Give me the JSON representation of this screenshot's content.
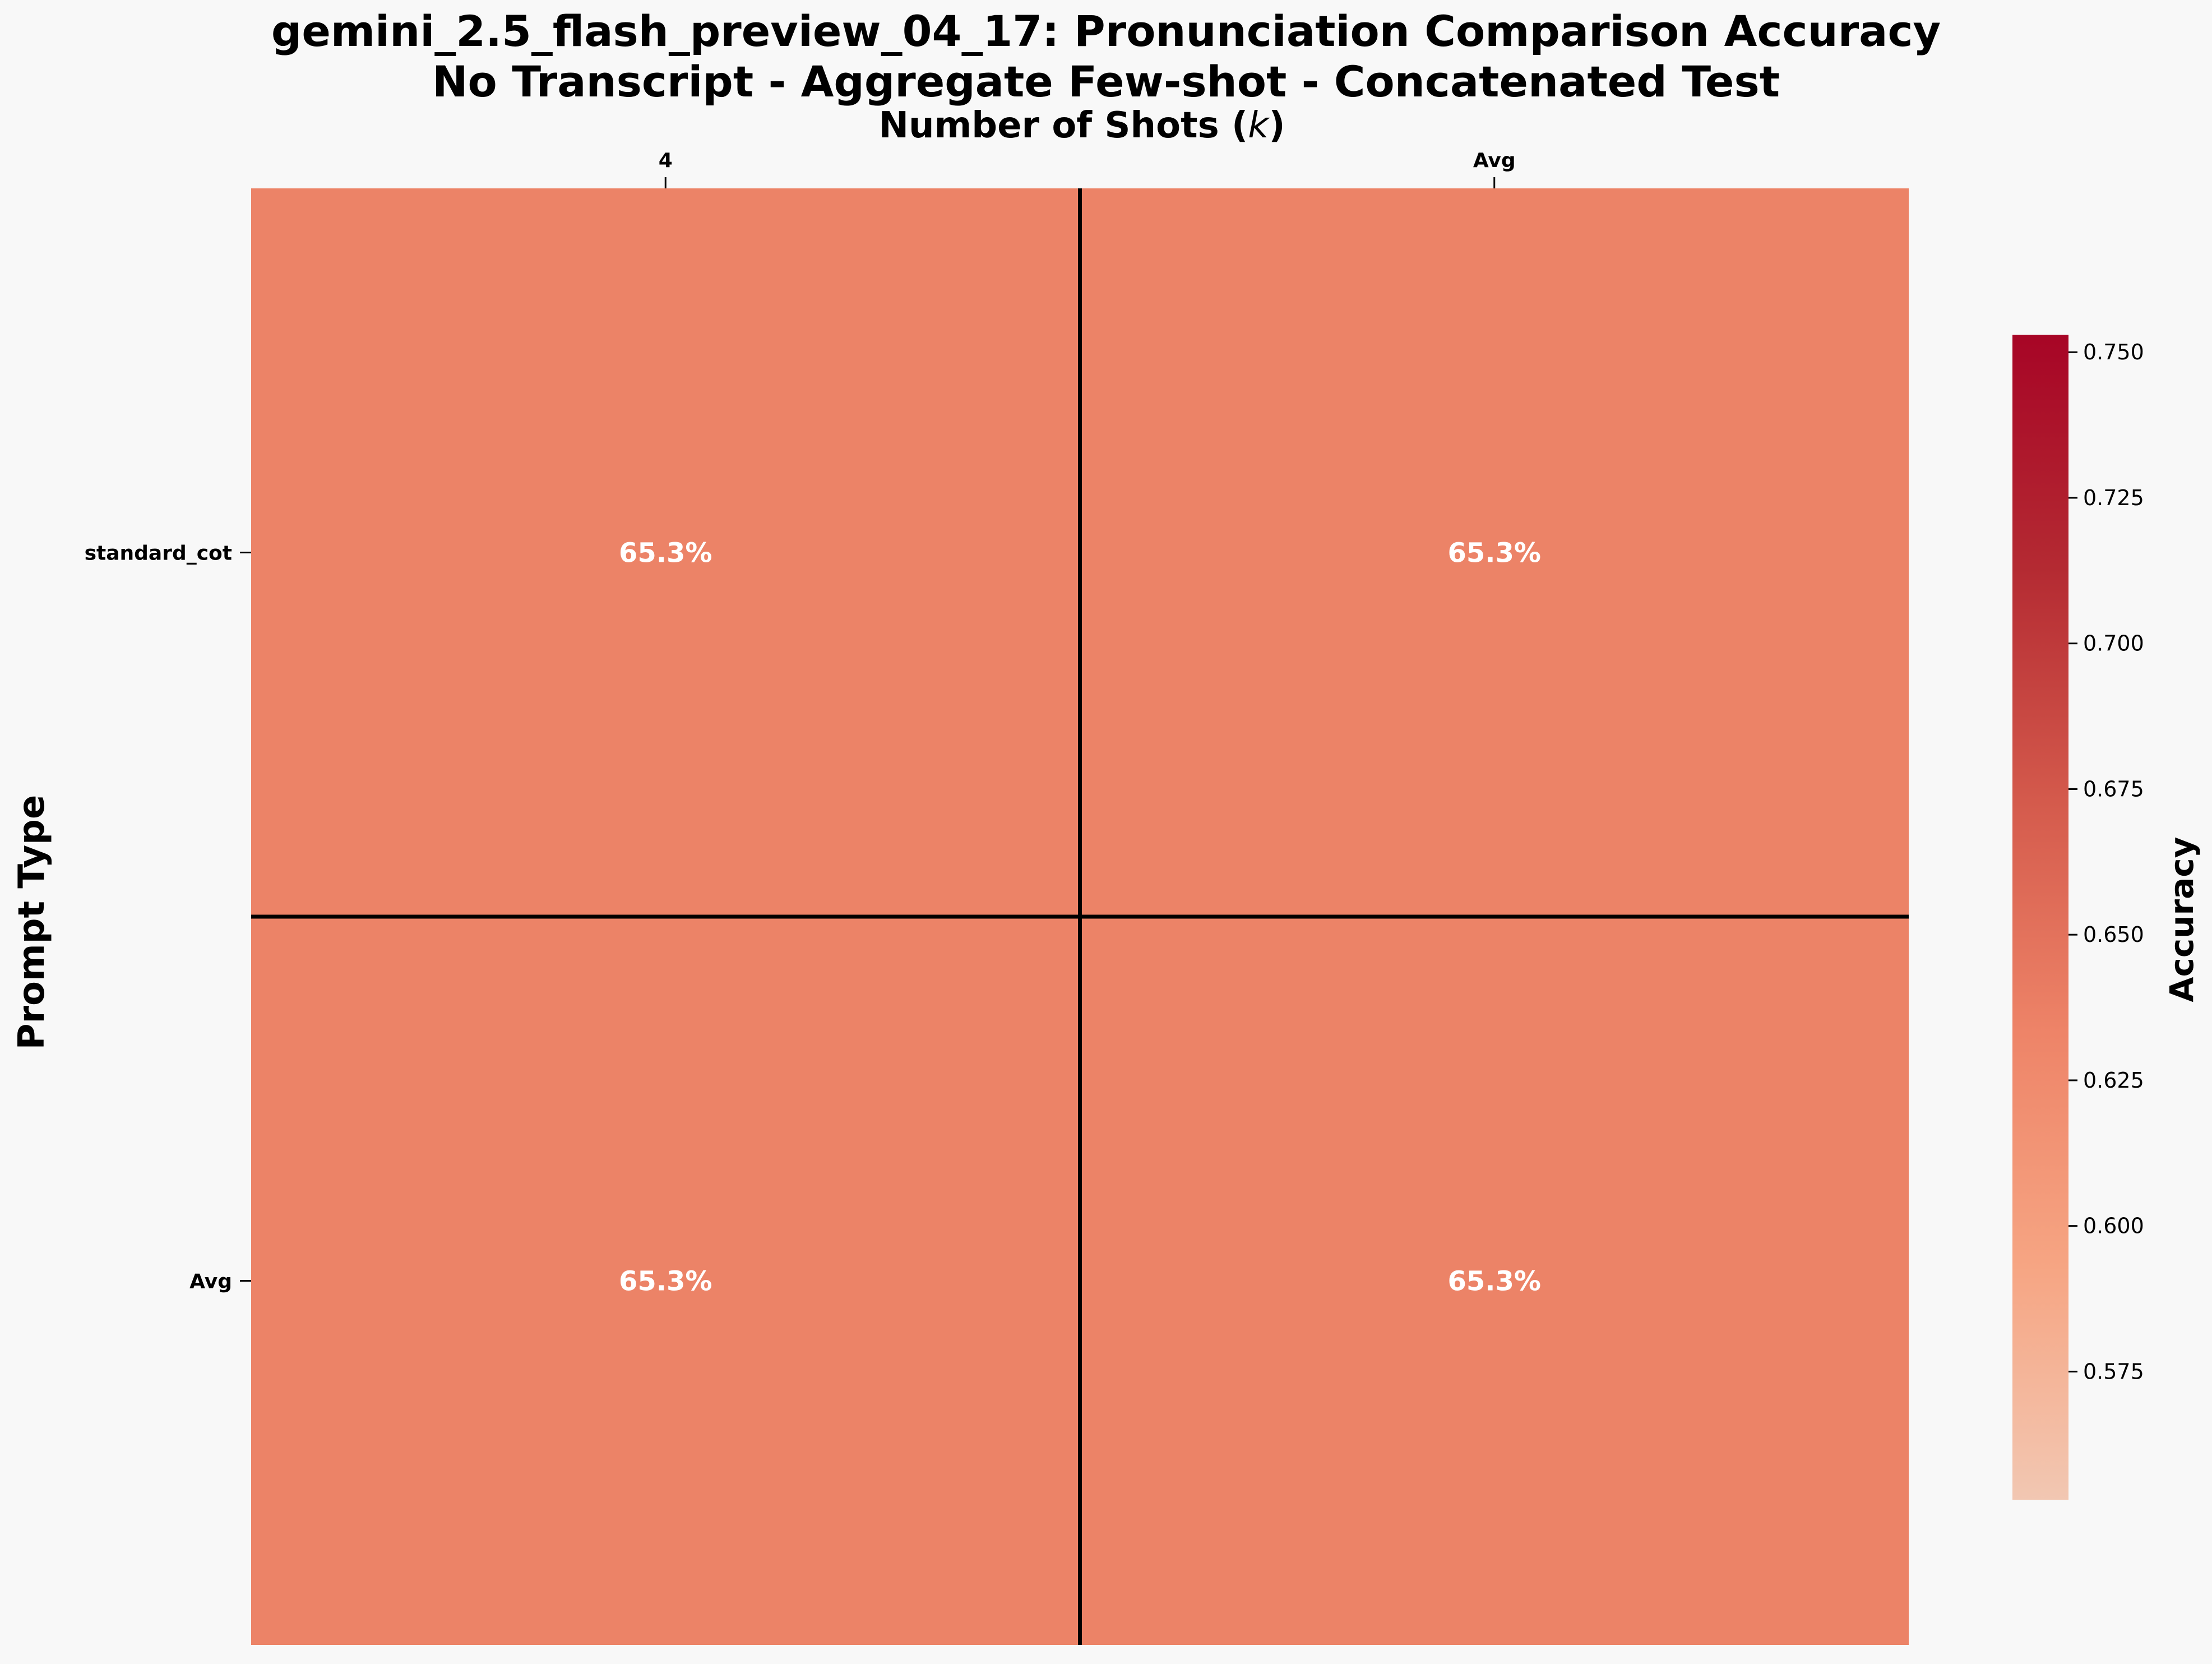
{
  "chart_data": {
    "type": "heatmap",
    "title": "gemini_2.5_flash_preview_04_17: Pronunciation Comparison Accuracy",
    "subtitle": "No Transcript - Aggregate Few-shot - Concatenated Test",
    "xlabel": "Number of Shots (k)",
    "xlabel_prefix": "Number of Shots (",
    "xlabel_var": "k",
    "xlabel_suffix": ")",
    "ylabel": "Prompt Type",
    "x_categories": [
      "4",
      "Avg"
    ],
    "y_categories": [
      "standard_cot",
      "Avg"
    ],
    "values": [
      [
        0.653,
        0.653
      ],
      [
        0.653,
        0.653
      ]
    ],
    "cell_labels": [
      [
        "65.3%",
        "65.3%"
      ],
      [
        "65.3%",
        "65.3%"
      ]
    ],
    "colorbar": {
      "label": "Accuracy",
      "range": [
        0.553,
        0.753
      ],
      "ticks": [
        0.575,
        0.6,
        0.625,
        0.65,
        0.675,
        0.7,
        0.725,
        0.75
      ],
      "tick_labels": [
        "0.575",
        "0.600",
        "0.625",
        "0.650",
        "0.675",
        "0.700",
        "0.725",
        "0.750"
      ],
      "colormap": [
        "#f2c7b2",
        "#f6a583",
        "#ee8468",
        "#d45a4c",
        "#b42a32",
        "#a70526"
      ]
    },
    "cell_color": "#ec8367",
    "divider_color": "#000000"
  }
}
